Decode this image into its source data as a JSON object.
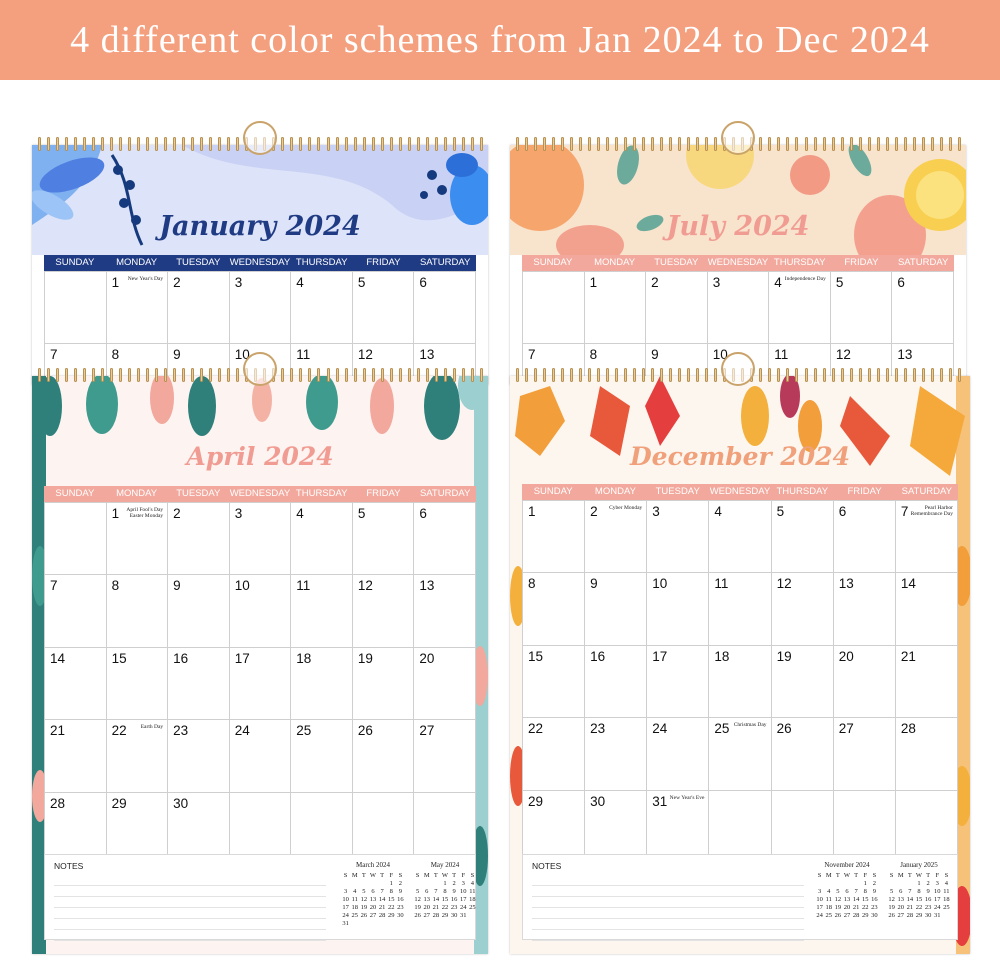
{
  "banner": {
    "text": "4 different color schemes from Jan 2024 to Dec 2024"
  },
  "weekdays": [
    "SUNDAY",
    "MONDAY",
    "TUESDAY",
    "WEDNESDAY",
    "THURSDAY",
    "FRIDAY",
    "SATURDAY"
  ],
  "colors": {
    "banner": "#f4a07f",
    "january_header": "#1f3b84",
    "january_title": "#1f3b84",
    "pink_header": "#f2a89c",
    "july_title": "#f19c92",
    "april_title": "#f19c92",
    "december_title": "#f0a07a"
  },
  "calendars": {
    "january": {
      "title": "January 2024",
      "row1": [
        {
          "num": "",
          "hol": ""
        },
        {
          "num": "1",
          "hol": "New Year's Day"
        },
        {
          "num": "2",
          "hol": ""
        },
        {
          "num": "3",
          "hol": ""
        },
        {
          "num": "4",
          "hol": ""
        },
        {
          "num": "5",
          "hol": ""
        },
        {
          "num": "6",
          "hol": ""
        }
      ],
      "row2": [
        "7",
        "8",
        "9",
        "10",
        "11",
        "12",
        "13"
      ]
    },
    "july": {
      "title": "July 2024",
      "row1": [
        {
          "num": "",
          "hol": ""
        },
        {
          "num": "1",
          "hol": ""
        },
        {
          "num": "2",
          "hol": ""
        },
        {
          "num": "3",
          "hol": ""
        },
        {
          "num": "4",
          "hol": "Independence Day"
        },
        {
          "num": "5",
          "hol": ""
        },
        {
          "num": "6",
          "hol": ""
        }
      ],
      "row2": [
        "7",
        "8",
        "9",
        "10",
        "11",
        "12",
        "13"
      ]
    },
    "april": {
      "title": "April 2024",
      "weeks": [
        [
          {
            "num": "",
            "hol": ""
          },
          {
            "num": "1",
            "hol": "April Fool's Day Easter Monday"
          },
          {
            "num": "2",
            "hol": ""
          },
          {
            "num": "3",
            "hol": ""
          },
          {
            "num": "4",
            "hol": ""
          },
          {
            "num": "5",
            "hol": ""
          },
          {
            "num": "6",
            "hol": ""
          }
        ],
        [
          {
            "num": "7",
            "hol": ""
          },
          {
            "num": "8",
            "hol": ""
          },
          {
            "num": "9",
            "hol": ""
          },
          {
            "num": "10",
            "hol": ""
          },
          {
            "num": "11",
            "hol": ""
          },
          {
            "num": "12",
            "hol": ""
          },
          {
            "num": "13",
            "hol": ""
          }
        ],
        [
          {
            "num": "14",
            "hol": ""
          },
          {
            "num": "15",
            "hol": ""
          },
          {
            "num": "16",
            "hol": ""
          },
          {
            "num": "17",
            "hol": ""
          },
          {
            "num": "18",
            "hol": ""
          },
          {
            "num": "19",
            "hol": ""
          },
          {
            "num": "20",
            "hol": ""
          }
        ],
        [
          {
            "num": "21",
            "hol": ""
          },
          {
            "num": "22",
            "hol": "Earth Day"
          },
          {
            "num": "23",
            "hol": ""
          },
          {
            "num": "24",
            "hol": ""
          },
          {
            "num": "25",
            "hol": ""
          },
          {
            "num": "26",
            "hol": ""
          },
          {
            "num": "27",
            "hol": ""
          }
        ],
        [
          {
            "num": "28",
            "hol": ""
          },
          {
            "num": "29",
            "hol": ""
          },
          {
            "num": "30",
            "hol": ""
          },
          {
            "num": "",
            "hol": ""
          },
          {
            "num": "",
            "hol": ""
          },
          {
            "num": "",
            "hol": ""
          },
          {
            "num": "",
            "hol": ""
          }
        ]
      ],
      "notes_label": "NOTES",
      "mini": [
        {
          "title": "March 2024",
          "head": [
            "S",
            "M",
            "T",
            "W",
            "T",
            "F",
            "S"
          ],
          "days": [
            "",
            "",
            "",
            "",
            "",
            "1",
            "2",
            "3",
            "4",
            "5",
            "6",
            "7",
            "8",
            "9",
            "10",
            "11",
            "12",
            "13",
            "14",
            "15",
            "16",
            "17",
            "18",
            "19",
            "20",
            "21",
            "22",
            "23",
            "24",
            "25",
            "26",
            "27",
            "28",
            "29",
            "30",
            "31"
          ]
        },
        {
          "title": "May 2024",
          "head": [
            "S",
            "M",
            "T",
            "W",
            "T",
            "F",
            "S"
          ],
          "days": [
            "",
            "",
            "",
            "1",
            "2",
            "3",
            "4",
            "5",
            "6",
            "7",
            "8",
            "9",
            "10",
            "11",
            "12",
            "13",
            "14",
            "15",
            "16",
            "17",
            "18",
            "19",
            "20",
            "21",
            "22",
            "23",
            "24",
            "25",
            "26",
            "27",
            "28",
            "29",
            "30",
            "31"
          ]
        }
      ]
    },
    "december": {
      "title": "December 2024",
      "weeks": [
        [
          {
            "num": "1",
            "hol": ""
          },
          {
            "num": "2",
            "hol": "Cyber Monday"
          },
          {
            "num": "3",
            "hol": ""
          },
          {
            "num": "4",
            "hol": ""
          },
          {
            "num": "5",
            "hol": ""
          },
          {
            "num": "6",
            "hol": ""
          },
          {
            "num": "7",
            "hol": "Pearl Harbor Remembrance Day"
          }
        ],
        [
          {
            "num": "8",
            "hol": ""
          },
          {
            "num": "9",
            "hol": ""
          },
          {
            "num": "10",
            "hol": ""
          },
          {
            "num": "11",
            "hol": ""
          },
          {
            "num": "12",
            "hol": ""
          },
          {
            "num": "13",
            "hol": ""
          },
          {
            "num": "14",
            "hol": ""
          }
        ],
        [
          {
            "num": "15",
            "hol": ""
          },
          {
            "num": "16",
            "hol": ""
          },
          {
            "num": "17",
            "hol": ""
          },
          {
            "num": "18",
            "hol": ""
          },
          {
            "num": "19",
            "hol": ""
          },
          {
            "num": "20",
            "hol": ""
          },
          {
            "num": "21",
            "hol": ""
          }
        ],
        [
          {
            "num": "22",
            "hol": ""
          },
          {
            "num": "23",
            "hol": ""
          },
          {
            "num": "24",
            "hol": ""
          },
          {
            "num": "25",
            "hol": "Christmas Day"
          },
          {
            "num": "26",
            "hol": ""
          },
          {
            "num": "27",
            "hol": ""
          },
          {
            "num": "28",
            "hol": ""
          }
        ],
        [
          {
            "num": "29",
            "hol": ""
          },
          {
            "num": "30",
            "hol": ""
          },
          {
            "num": "31",
            "hol": "New Year's Eve"
          },
          {
            "num": "",
            "hol": ""
          },
          {
            "num": "",
            "hol": ""
          },
          {
            "num": "",
            "hol": ""
          },
          {
            "num": "",
            "hol": ""
          }
        ]
      ],
      "notes_label": "NOTES",
      "mini": [
        {
          "title": "November 2024",
          "head": [
            "S",
            "M",
            "T",
            "W",
            "T",
            "F",
            "S"
          ],
          "days": [
            "",
            "",
            "",
            "",
            "",
            "1",
            "2",
            "3",
            "4",
            "5",
            "6",
            "7",
            "8",
            "9",
            "10",
            "11",
            "12",
            "13",
            "14",
            "15",
            "16",
            "17",
            "18",
            "19",
            "20",
            "21",
            "22",
            "23",
            "24",
            "25",
            "26",
            "27",
            "28",
            "29",
            "30"
          ]
        },
        {
          "title": "January 2025",
          "head": [
            "S",
            "M",
            "T",
            "W",
            "T",
            "F",
            "S"
          ],
          "days": [
            "",
            "",
            "",
            "1",
            "2",
            "3",
            "4",
            "5",
            "6",
            "7",
            "8",
            "9",
            "10",
            "11",
            "12",
            "13",
            "14",
            "15",
            "16",
            "17",
            "18",
            "19",
            "20",
            "21",
            "22",
            "23",
            "24",
            "25",
            "26",
            "27",
            "28",
            "29",
            "30",
            "31"
          ]
        }
      ]
    }
  }
}
